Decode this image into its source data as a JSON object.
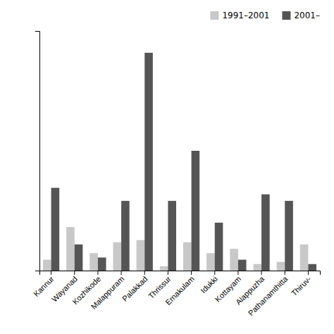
{
  "chart_data": {
    "type": "bar",
    "categories": [
      "Kannur",
      "Wayanad",
      "Kozhikode",
      "Malappuram",
      "Palakkad",
      "Thrissur",
      "Ernakulam",
      "Idukki",
      "Kottayam",
      "Alappuzha",
      "Pathanamthitta",
      "Thiruv-"
    ],
    "series": [
      {
        "name": "1991–2001",
        "color": "#c8c8c8",
        "values": [
          5,
          20,
          8,
          13,
          14,
          2,
          13,
          8,
          10,
          3,
          4,
          12
        ]
      },
      {
        "name": "2001–",
        "color": "#555555",
        "values": [
          38,
          12,
          6,
          32,
          100,
          32,
          55,
          22,
          5,
          35,
          32,
          3
        ]
      }
    ],
    "ylim": [
      0,
      110
    ],
    "tick_labels": "x",
    "grid": false,
    "legend": "upper right"
  }
}
